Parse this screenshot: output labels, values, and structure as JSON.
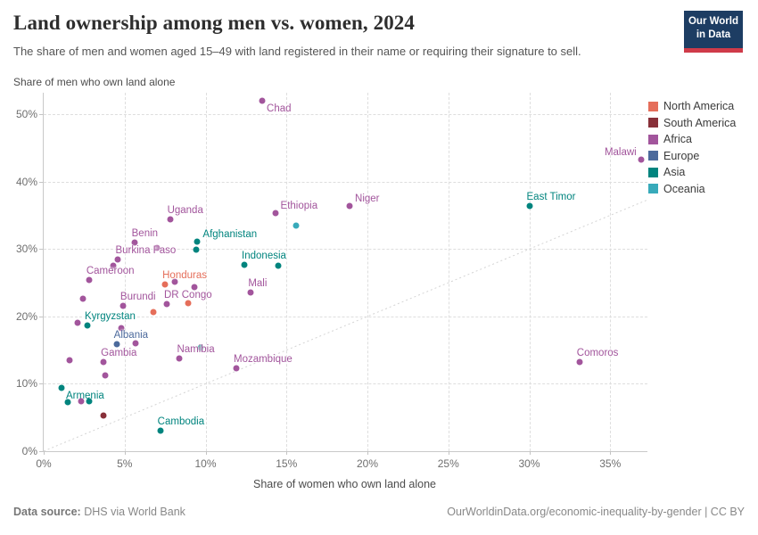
{
  "header": {
    "title": "Land ownership among men vs. women, 2024",
    "subtitle": "The share of men and women aged 15–49 with land registered in their name or requiring their signature to sell.",
    "logo_line1": "Our World",
    "logo_line2": "in Data"
  },
  "footer": {
    "source_label": "Data source:",
    "source_text": " DHS via World Bank",
    "right_text": "OurWorldinData.org/economic-inequality-by-gender | CC BY"
  },
  "chart_data": {
    "type": "scatter",
    "x_axis": {
      "title": "Share of women who own land alone",
      "min": 0,
      "max": 37.3,
      "tick_values": [
        0,
        5,
        10,
        15,
        20,
        25,
        30,
        35
      ],
      "tick_labels": [
        "0%",
        "5%",
        "10%",
        "15%",
        "20%",
        "25%",
        "30%",
        "35%"
      ],
      "grid_values": [
        5,
        10,
        15,
        20,
        25,
        30,
        35
      ]
    },
    "y_axis": {
      "title": "Share of men who own land alone",
      "min": 0,
      "max": 53.2,
      "tick_values": [
        0,
        10,
        20,
        30,
        40,
        50
      ],
      "tick_labels": [
        "0%",
        "10%",
        "20%",
        "30%",
        "40%",
        "50%"
      ],
      "grid_values": [
        10,
        20,
        30,
        40,
        50
      ]
    },
    "diagonal_parity_line": true,
    "legend": [
      {
        "name": "North America",
        "color": "#E56E5A"
      },
      {
        "name": "South America",
        "color": "#883039"
      },
      {
        "name": "Africa",
        "color": "#A2559C"
      },
      {
        "name": "Europe",
        "color": "#4C6A9C"
      },
      {
        "name": "Asia",
        "color": "#00847E"
      },
      {
        "name": "Oceania",
        "color": "#38AABA"
      }
    ],
    "points": [
      {
        "name": "Chad",
        "region": "Africa",
        "x": 13.5,
        "y": 52.0,
        "label_pos": "below-right"
      },
      {
        "name": "Malawi",
        "region": "Africa",
        "x": 36.9,
        "y": 43.3,
        "label_pos": "left"
      },
      {
        "name": "Niger",
        "region": "Africa",
        "x": 18.9,
        "y": 36.4,
        "label_pos": "above-right"
      },
      {
        "name": "East Timor",
        "region": "Asia",
        "x": 30.0,
        "y": 36.4,
        "label_pos": "above"
      },
      {
        "name": "Ethiopia",
        "region": "Africa",
        "x": 14.3,
        "y": 35.3,
        "label_pos": "above-right"
      },
      {
        "name": "Uganda",
        "region": "Africa",
        "x": 7.8,
        "y": 34.4,
        "label_pos": "above"
      },
      {
        "name": "",
        "region": "Oceania",
        "x": 15.6,
        "y": 33.5
      },
      {
        "name": "Afghanistan",
        "region": "Asia",
        "x": 9.5,
        "y": 31.1,
        "label_pos": "above-right"
      },
      {
        "name": "Benin",
        "region": "Africa",
        "x": 5.6,
        "y": 31.0,
        "label_pos": "above"
      },
      {
        "name": "",
        "region": "Africa",
        "x": 7.0,
        "y": 30.2
      },
      {
        "name": "",
        "region": "Asia",
        "x": 9.4,
        "y": 29.9
      },
      {
        "name": "Burkina Faso",
        "region": "Africa",
        "x": 4.6,
        "y": 28.5,
        "label_pos": "above"
      },
      {
        "name": "Indonesia",
        "region": "Asia",
        "x": 12.4,
        "y": 27.6,
        "label_pos": "above"
      },
      {
        "name": "",
        "region": "Africa",
        "x": 4.3,
        "y": 27.5
      },
      {
        "name": "",
        "region": "Asia",
        "x": 14.5,
        "y": 27.5
      },
      {
        "name": "Cameroon",
        "region": "Africa",
        "x": 2.8,
        "y": 25.4,
        "label_pos": "above"
      },
      {
        "name": "",
        "region": "Africa",
        "x": 8.1,
        "y": 25.2
      },
      {
        "name": "Honduras",
        "region": "North America",
        "x": 7.5,
        "y": 24.8,
        "label_pos": "above"
      },
      {
        "name": "",
        "region": "Africa",
        "x": 9.3,
        "y": 24.3
      },
      {
        "name": "Mali",
        "region": "Africa",
        "x": 12.8,
        "y": 23.6,
        "label_pos": "above"
      },
      {
        "name": "",
        "region": "Africa",
        "x": 2.4,
        "y": 22.6
      },
      {
        "name": "",
        "region": "North America",
        "x": 8.9,
        "y": 22.0
      },
      {
        "name": "DR Congo",
        "region": "Africa",
        "x": 7.6,
        "y": 21.8,
        "label_pos": "above"
      },
      {
        "name": "Burundi",
        "region": "Africa",
        "x": 4.9,
        "y": 21.6,
        "label_pos": "above"
      },
      {
        "name": "",
        "region": "North America",
        "x": 6.8,
        "y": 20.6
      },
      {
        "name": "",
        "region": "Africa",
        "x": 2.1,
        "y": 19.1
      },
      {
        "name": "Kyrgyzstan",
        "region": "Asia",
        "x": 2.7,
        "y": 18.7,
        "label_pos": "above"
      },
      {
        "name": "",
        "region": "Africa",
        "x": 4.8,
        "y": 18.3
      },
      {
        "name": "",
        "region": "Africa",
        "x": 5.7,
        "y": 16.0
      },
      {
        "name": "Albania",
        "region": "Europe",
        "x": 4.5,
        "y": 15.9,
        "label_pos": "above"
      },
      {
        "name": "",
        "region": "Asia",
        "x": 9.7,
        "y": 15.4
      },
      {
        "name": "Namibia",
        "region": "Africa",
        "x": 8.4,
        "y": 13.7,
        "label_pos": "above"
      },
      {
        "name": "",
        "region": "Africa",
        "x": 1.6,
        "y": 13.5
      },
      {
        "name": "Gambia",
        "region": "Africa",
        "x": 3.7,
        "y": 13.3,
        "label_pos": "above"
      },
      {
        "name": "Comoros",
        "region": "Africa",
        "x": 33.1,
        "y": 13.2,
        "label_pos": "above"
      },
      {
        "name": "Mozambique",
        "region": "Africa",
        "x": 11.9,
        "y": 12.3,
        "label_pos": "above"
      },
      {
        "name": "",
        "region": "Africa",
        "x": 3.8,
        "y": 11.3
      },
      {
        "name": "Armenia",
        "region": "Asia",
        "x": 1.1,
        "y": 9.4,
        "label_pos": "below-right"
      },
      {
        "name": "",
        "region": "Asia",
        "x": 1.5,
        "y": 7.3
      },
      {
        "name": "",
        "region": "Africa",
        "x": 2.3,
        "y": 7.4
      },
      {
        "name": "",
        "region": "Asia",
        "x": 2.8,
        "y": 7.4
      },
      {
        "name": "",
        "region": "South America",
        "x": 3.7,
        "y": 5.3
      },
      {
        "name": "Cambodia",
        "region": "Asia",
        "x": 7.2,
        "y": 3.1,
        "label_pos": "above"
      }
    ]
  }
}
